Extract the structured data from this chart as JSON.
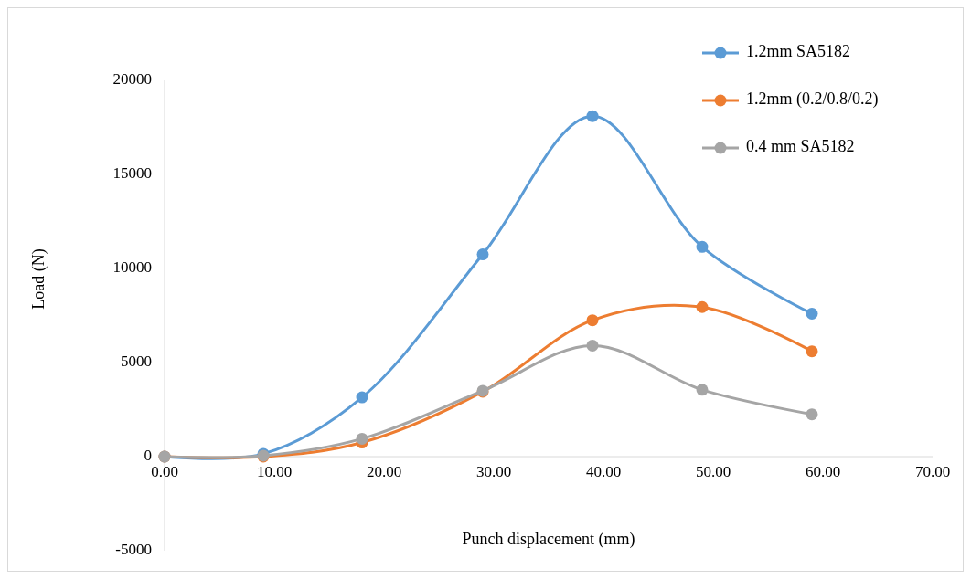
{
  "chart_data": {
    "type": "line",
    "xlabel": "Punch displacement (mm)",
    "ylabel": "Load (N)",
    "x": [
      0,
      9,
      18,
      29,
      39,
      49,
      59
    ],
    "series": [
      {
        "name": "1.2mm SA5182",
        "color": "#5b9bd5",
        "values": [
          0,
          150,
          3150,
          10750,
          18100,
          11150,
          7600
        ]
      },
      {
        "name": "1.2mm (0.2/0.8/0.2)",
        "color": "#ed7d31",
        "values": [
          0,
          0,
          750,
          3450,
          7250,
          7950,
          5600
        ]
      },
      {
        "name": "0.4 mm SA5182",
        "color": "#a5a5a5",
        "values": [
          0,
          50,
          950,
          3500,
          5900,
          3550,
          2250
        ]
      }
    ],
    "xlim": [
      0,
      70
    ],
    "xticks": [
      {
        "value": 0,
        "label": "0.00"
      },
      {
        "value": 10,
        "label": "10.00"
      },
      {
        "value": 20,
        "label": "20.00"
      },
      {
        "value": 30,
        "label": "30.00"
      },
      {
        "value": 40,
        "label": "40.00"
      },
      {
        "value": 50,
        "label": "50.00"
      },
      {
        "value": 60,
        "label": "60.00"
      },
      {
        "value": 70,
        "label": "70.00"
      }
    ],
    "ylim": [
      -5000,
      20000
    ],
    "yticks": [
      -5000,
      0,
      5000,
      10000,
      15000,
      20000
    ],
    "grid": false,
    "legend": "top right",
    "marker": "circle",
    "line_style": "solid"
  }
}
